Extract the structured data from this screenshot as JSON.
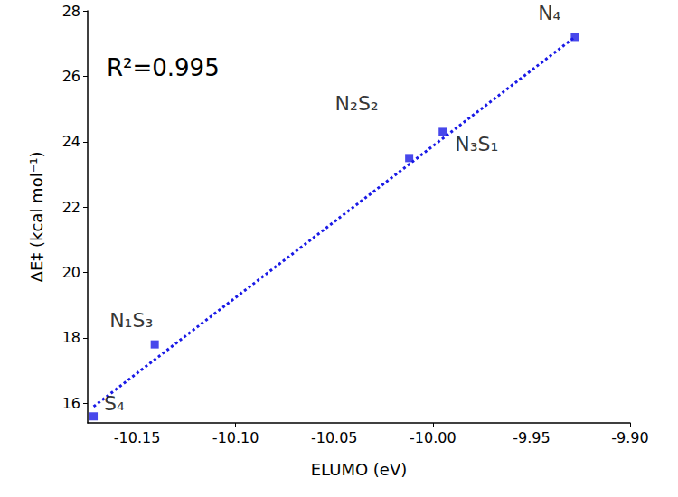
{
  "chart_data": {
    "type": "scatter",
    "xlabel": "ELUMO (eV)",
    "ylabel": "ΔE‡ (kcal mol⁻¹)",
    "annotations": [
      "R²=0.995"
    ],
    "names": [
      "S₄",
      "N₁S₃",
      "N₂S₂",
      "N₃S₁",
      "N₄"
    ],
    "x": [
      -10.172,
      -10.141,
      -10.012,
      -9.995,
      -9.928
    ],
    "values": [
      15.6,
      17.8,
      23.5,
      24.3,
      27.2
    ],
    "trendline": {
      "x": [
        -10.172,
        -9.928
      ],
      "y": [
        15.9,
        27.2
      ],
      "line_style": "dotted"
    },
    "color": "#1a1ae6",
    "marker": "square",
    "xlim": [
      -10.175,
      -9.9
    ],
    "xticks": [
      {
        "value": -10.15,
        "label": "-10.15"
      },
      {
        "value": -10.1,
        "label": "-10.10"
      },
      {
        "value": -10.05,
        "label": "-10.05"
      },
      {
        "value": -10,
        "label": "-10.00"
      },
      {
        "value": -9.95,
        "label": "-9.95"
      },
      {
        "value": -9.9,
        "label": "-9.90"
      }
    ],
    "ylim": [
      15.4,
      28
    ],
    "yticks": [
      16,
      18,
      20,
      22,
      24,
      26,
      28
    ],
    "grid": false
  }
}
